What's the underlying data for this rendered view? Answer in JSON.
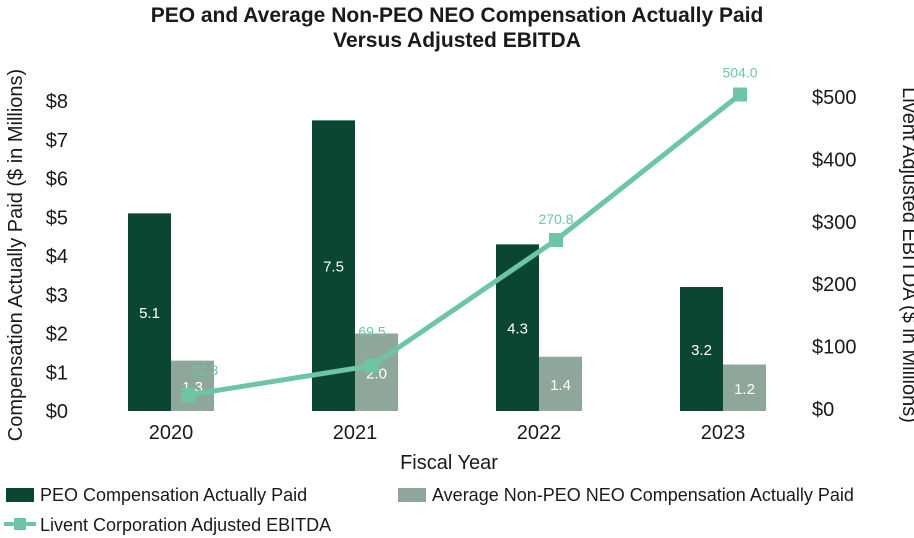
{
  "chart_data": {
    "type": "bar",
    "title_line1": "PEO and Average Non-PEO NEO Compensation Actually Paid",
    "title_line2": "Versus Adjusted EBITDA",
    "xlabel": "Fiscal Year",
    "ylabel_left": "Compensation Actually Paid ($ in Millions)",
    "ylabel_right": "Livent Adjusted EBITDA ($ in Millions)",
    "categories": [
      "2020",
      "2021",
      "2022",
      "2023"
    ],
    "left_axis": {
      "ylim": [
        0,
        8
      ],
      "ticks": [
        0,
        1,
        2,
        3,
        4,
        5,
        6,
        7,
        8
      ],
      "tick_labels": [
        "$0",
        "$1",
        "$2",
        "$3",
        "$4",
        "$5",
        "$6",
        "$7",
        "$8"
      ]
    },
    "right_axis": {
      "ylim": [
        0,
        500
      ],
      "ticks": [
        0,
        100,
        200,
        300,
        400,
        500
      ],
      "tick_labels": [
        "$0",
        "$100",
        "$200",
        "$300",
        "$400",
        "$500"
      ]
    },
    "series": [
      {
        "name": "PEO Compensation Actually Paid",
        "kind": "bar",
        "axis": "left",
        "color": "#0b4632",
        "values": [
          5.1,
          7.5,
          4.3,
          3.2
        ],
        "labels": [
          "5.1",
          "7.5",
          "4.3",
          "3.2"
        ]
      },
      {
        "name": "Average Non-PEO NEO Compensation Actually Paid",
        "kind": "bar",
        "axis": "left",
        "color": "#8fa79b",
        "values": [
          1.3,
          2.0,
          1.4,
          1.2
        ],
        "labels": [
          "1.3",
          "2.0",
          "1.4",
          "1.2"
        ]
      },
      {
        "name": "Livent Corporation Adjusted EBITDA",
        "kind": "line",
        "axis": "right",
        "color": "#6cc6a4",
        "values": [
          22.3,
          69.5,
          270.8,
          504.0
        ],
        "labels": [
          "22.3",
          "69.5",
          "270.8",
          "504.0"
        ]
      }
    ],
    "grid": false,
    "legend_position": "bottom"
  }
}
